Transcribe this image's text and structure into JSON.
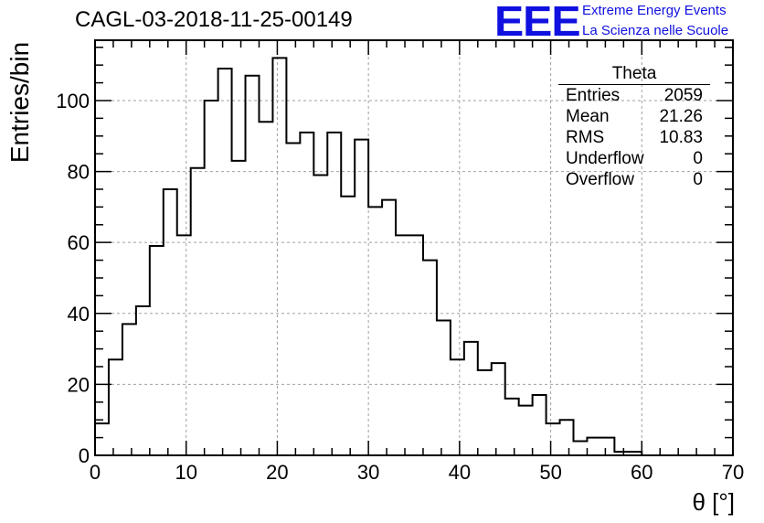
{
  "header": {
    "title": "CAGL-03-2018-11-25-00149",
    "logo_mark": "EEE",
    "logo_line1": "Extreme Energy Events",
    "logo_line2": "La Scienza nelle Scuole"
  },
  "stats": {
    "name": "Theta",
    "rows": [
      {
        "label": "Entries",
        "value": "2059"
      },
      {
        "label": "Mean",
        "value": "21.26"
      },
      {
        "label": "RMS",
        "value": "10.83"
      },
      {
        "label": "Underflow",
        "value": "0"
      },
      {
        "label": "Overflow",
        "value": "0"
      }
    ]
  },
  "chart_data": {
    "type": "bar",
    "title": "CAGL-03-2018-11-25-00149",
    "xlabel": "θ [°]",
    "ylabel": "Entries/bin",
    "xlim": [
      0,
      70
    ],
    "ylim": [
      0,
      117
    ],
    "grid": true,
    "bin_width": 1.5,
    "x_ticks": [
      0,
      10,
      20,
      30,
      40,
      50,
      60,
      70
    ],
    "y_ticks": [
      0,
      20,
      40,
      60,
      80,
      100
    ],
    "bin_edges_start": 0,
    "values": [
      9,
      27,
      37,
      42,
      59,
      75,
      62,
      81,
      100,
      109,
      83,
      107,
      94,
      112,
      88,
      91,
      79,
      91,
      73,
      89,
      70,
      72,
      62,
      62,
      55,
      38,
      27,
      32,
      24,
      26,
      16,
      14,
      17,
      9,
      10,
      4,
      5,
      5,
      1,
      1,
      0,
      0,
      0,
      0,
      0,
      0,
      0
    ]
  }
}
